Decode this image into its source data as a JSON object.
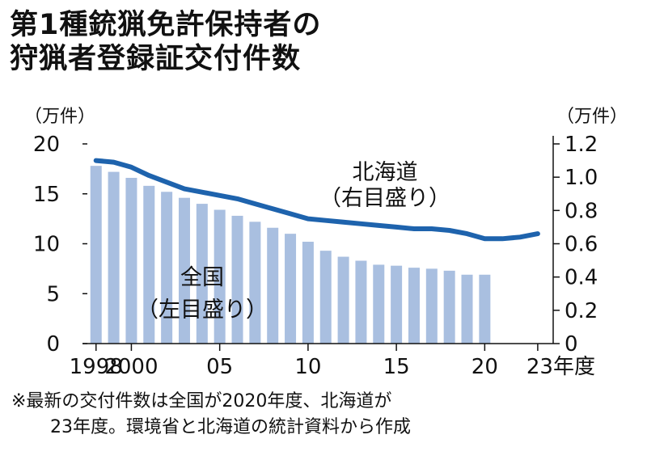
{
  "title_lines": [
    "第1種銃猟免許保持者の",
    "狩猟者登録証交付件数"
  ],
  "unit_left": "（万件）",
  "unit_right": "（万件）",
  "labels": {
    "national_line1": "全国",
    "national_line2": "（左目盛り）",
    "hokkaido_line1": "北海道",
    "hokkaido_line2": "（右目盛り）"
  },
  "notes": [
    "※最新の交付件数は全国が2020年度、北海道が",
    "23年度。環境省と北海道の統計資料から作成"
  ],
  "colors": {
    "bar": "#a9bfe0",
    "line": "#1e63ad",
    "axis": "#111111"
  },
  "chart_data": {
    "type": "bar+line",
    "left_axis": {
      "ylim": [
        0,
        20
      ],
      "ticks": [
        "0",
        "5",
        "10",
        "15",
        "20"
      ]
    },
    "right_axis": {
      "ylim": [
        0,
        1.2
      ],
      "ticks": [
        "0",
        "0.2",
        "0.4",
        "0.6",
        "0.8",
        "1.0",
        "1.2"
      ]
    },
    "x_ticks": [
      {
        "x": 1998,
        "label": "1998"
      },
      {
        "x": 2000,
        "label": "2000"
      },
      {
        "x": 2005,
        "label": "05"
      },
      {
        "x": 2010,
        "label": "10"
      },
      {
        "x": 2015,
        "label": "15"
      },
      {
        "x": 2020,
        "label": "20"
      },
      {
        "x": 2023,
        "label": "23年度"
      }
    ],
    "national": {
      "axis": "left",
      "x": [
        1998,
        1999,
        2000,
        2001,
        2002,
        2003,
        2004,
        2005,
        2006,
        2007,
        2008,
        2009,
        2010,
        2011,
        2012,
        2013,
        2014,
        2015,
        2016,
        2017,
        2018,
        2019,
        2020
      ],
      "values": [
        17.8,
        17.2,
        16.6,
        15.8,
        15.2,
        14.6,
        14.0,
        13.4,
        12.8,
        12.2,
        11.6,
        11.0,
        10.2,
        9.3,
        8.7,
        8.3,
        7.9,
        7.8,
        7.6,
        7.5,
        7.3,
        6.9,
        6.9
      ]
    },
    "hokkaido": {
      "axis": "right",
      "x": [
        1998,
        1999,
        2000,
        2001,
        2002,
        2003,
        2004,
        2005,
        2006,
        2007,
        2008,
        2009,
        2010,
        2011,
        2012,
        2013,
        2014,
        2015,
        2016,
        2017,
        2018,
        2019,
        2020,
        2021,
        2022,
        2023
      ],
      "values": [
        1.1,
        1.09,
        1.06,
        1.01,
        0.97,
        0.93,
        0.91,
        0.89,
        0.87,
        0.84,
        0.81,
        0.78,
        0.75,
        0.74,
        0.73,
        0.72,
        0.71,
        0.7,
        0.69,
        0.69,
        0.68,
        0.66,
        0.63,
        0.63,
        0.64,
        0.66
      ]
    }
  }
}
